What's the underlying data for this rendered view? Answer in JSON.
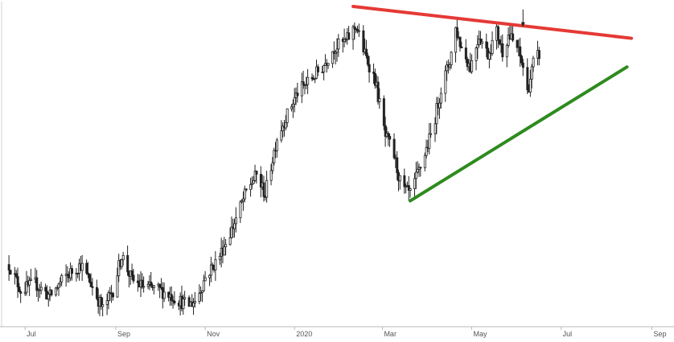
{
  "chart_data": {
    "type": "candlestick",
    "title": "",
    "xlabel": "",
    "ylabel": "",
    "x_ticks": [
      "Jul",
      "Sep",
      "Nov",
      "2020",
      "Mar",
      "May",
      "Jul",
      "Sep"
    ],
    "x_range": [
      "2019-06-15",
      "2020-09-15"
    ],
    "y_range": [
      0,
      100
    ],
    "grid": false,
    "legend": "none",
    "price_series": {
      "name": "",
      "points": [
        [
          "2019-06-20",
          18
        ],
        [
          "2019-06-28",
          10
        ],
        [
          "2019-07-08",
          12
        ],
        [
          "2019-07-18",
          8
        ],
        [
          "2019-07-28",
          14
        ],
        [
          "2019-08-08",
          18
        ],
        [
          "2019-08-15",
          12
        ],
        [
          "2019-08-23",
          4
        ],
        [
          "2019-08-30",
          10
        ],
        [
          "2019-09-05",
          21
        ],
        [
          "2019-09-12",
          13
        ],
        [
          "2019-09-20",
          11
        ],
        [
          "2019-10-01",
          10
        ],
        [
          "2019-10-10",
          8
        ],
        [
          "2019-10-20",
          5
        ],
        [
          "2019-10-26",
          7
        ],
        [
          "2019-11-01",
          14
        ],
        [
          "2019-11-10",
          20
        ],
        [
          "2019-11-20",
          30
        ],
        [
          "2019-11-30",
          42
        ],
        [
          "2019-12-06",
          46
        ],
        [
          "2019-12-12",
          40
        ],
        [
          "2019-12-20",
          58
        ],
        [
          "2019-12-28",
          66
        ],
        [
          "2020-01-03",
          72
        ],
        [
          "2020-01-12",
          76
        ],
        [
          "2020-01-20",
          80
        ],
        [
          "2020-01-28",
          86
        ],
        [
          "2020-02-05",
          88
        ],
        [
          "2020-02-12",
          93
        ],
        [
          "2020-02-18",
          84
        ],
        [
          "2020-02-25",
          76
        ],
        [
          "2020-03-03",
          58
        ],
        [
          "2020-03-08",
          54
        ],
        [
          "2020-03-14",
          42
        ],
        [
          "2020-03-20",
          40
        ],
        [
          "2020-03-28",
          50
        ],
        [
          "2020-04-04",
          60
        ],
        [
          "2020-04-10",
          73
        ],
        [
          "2020-04-16",
          82
        ],
        [
          "2020-04-20",
          92
        ],
        [
          "2020-04-24",
          86
        ],
        [
          "2020-04-30",
          80
        ],
        [
          "2020-05-06",
          90
        ],
        [
          "2020-05-12",
          84
        ],
        [
          "2020-05-18",
          91
        ],
        [
          "2020-05-22",
          85
        ],
        [
          "2020-05-26",
          90
        ],
        [
          "2020-06-01",
          86
        ],
        [
          "2020-06-05",
          80
        ],
        [
          "2020-06-08",
          72
        ],
        [
          "2020-06-12",
          81
        ],
        [
          "2020-06-16",
          84
        ]
      ],
      "color": "#222222"
    },
    "trend_lines": [
      {
        "name": "",
        "color": "#e53935",
        "from": [
          "2020-02-10",
          99
        ],
        "to": [
          "2020-08-18",
          89
        ]
      },
      {
        "name": "",
        "color": "#2e8b1e",
        "from": [
          "2020-03-20",
          38
        ],
        "to": [
          "2020-08-15",
          80
        ]
      }
    ],
    "annotation_arrow": {
      "x": "2020-06-05",
      "y": 92
    }
  }
}
